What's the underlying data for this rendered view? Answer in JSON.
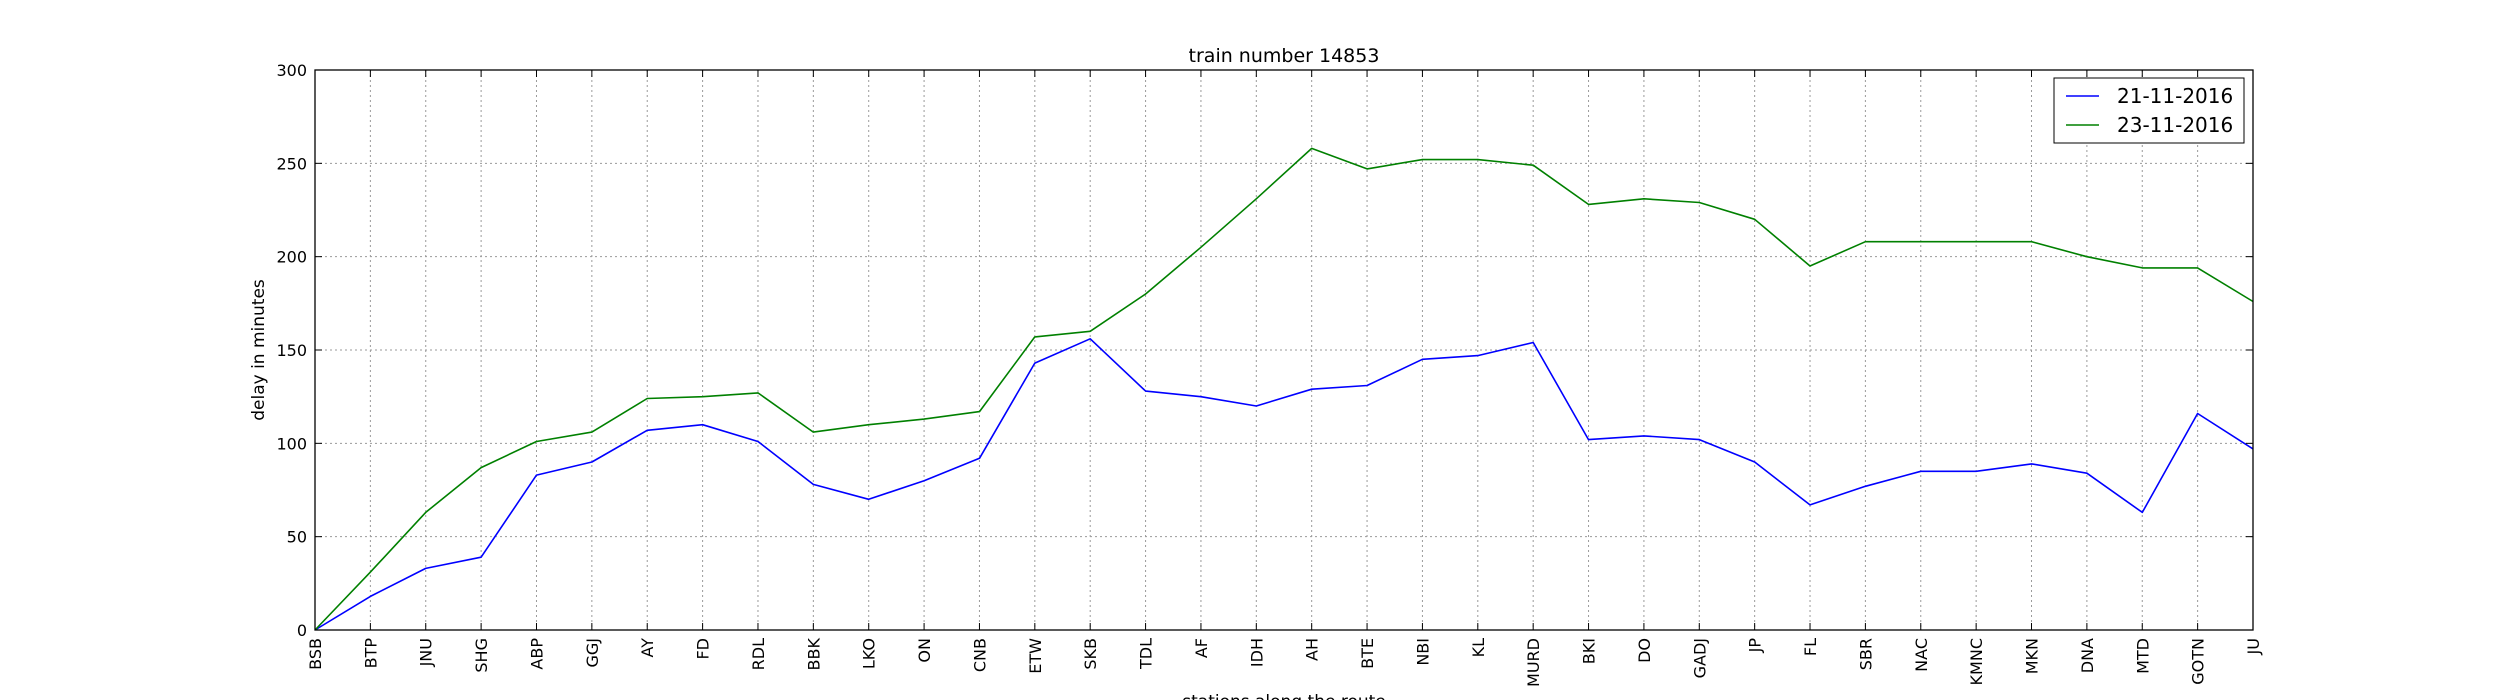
{
  "chart_data": {
    "type": "line",
    "title": "train number 14853",
    "xlabel": "stations along the route",
    "ylabel": "delay in minutes",
    "ylim": [
      0,
      300
    ],
    "yticks": [
      0,
      50,
      100,
      150,
      200,
      250,
      300
    ],
    "grid": true,
    "legend_position": "top-right",
    "categories": [
      "BSB",
      "BTP",
      "JNU",
      "SHG",
      "ABP",
      "GGJ",
      "AY",
      "FD",
      "RDL",
      "BBK",
      "LKO",
      "ON",
      "CNB",
      "ETW",
      "SKB",
      "TDL",
      "AF",
      "IDH",
      "AH",
      "BTE",
      "NBI",
      "KL",
      "MURD",
      "BKI",
      "DO",
      "GADJ",
      "JP",
      "FL",
      "SBR",
      "NAC",
      "KMNC",
      "MKN",
      "DNA",
      "MTD",
      "GOTN",
      "JU"
    ],
    "series": [
      {
        "name": "21-11-2016",
        "color": "#0000ff",
        "values": [
          0,
          18,
          33,
          39,
          83,
          90,
          107,
          110,
          101,
          78,
          70,
          80,
          92,
          143,
          156,
          128,
          125,
          120,
          129,
          131,
          145,
          147,
          154,
          102,
          104,
          102,
          90,
          67,
          77,
          85,
          85,
          89,
          84,
          63,
          116,
          97
        ]
      },
      {
        "name": "23-11-2016",
        "color": "#008000",
        "values": [
          0,
          31,
          63,
          87,
          101,
          106,
          124,
          125,
          127,
          106,
          110,
          113,
          117,
          157,
          160,
          180,
          205,
          231,
          258,
          247,
          252,
          252,
          249,
          228,
          231,
          229,
          220,
          195,
          208,
          208,
          208,
          208,
          200,
          194,
          194,
          176
        ]
      }
    ]
  }
}
